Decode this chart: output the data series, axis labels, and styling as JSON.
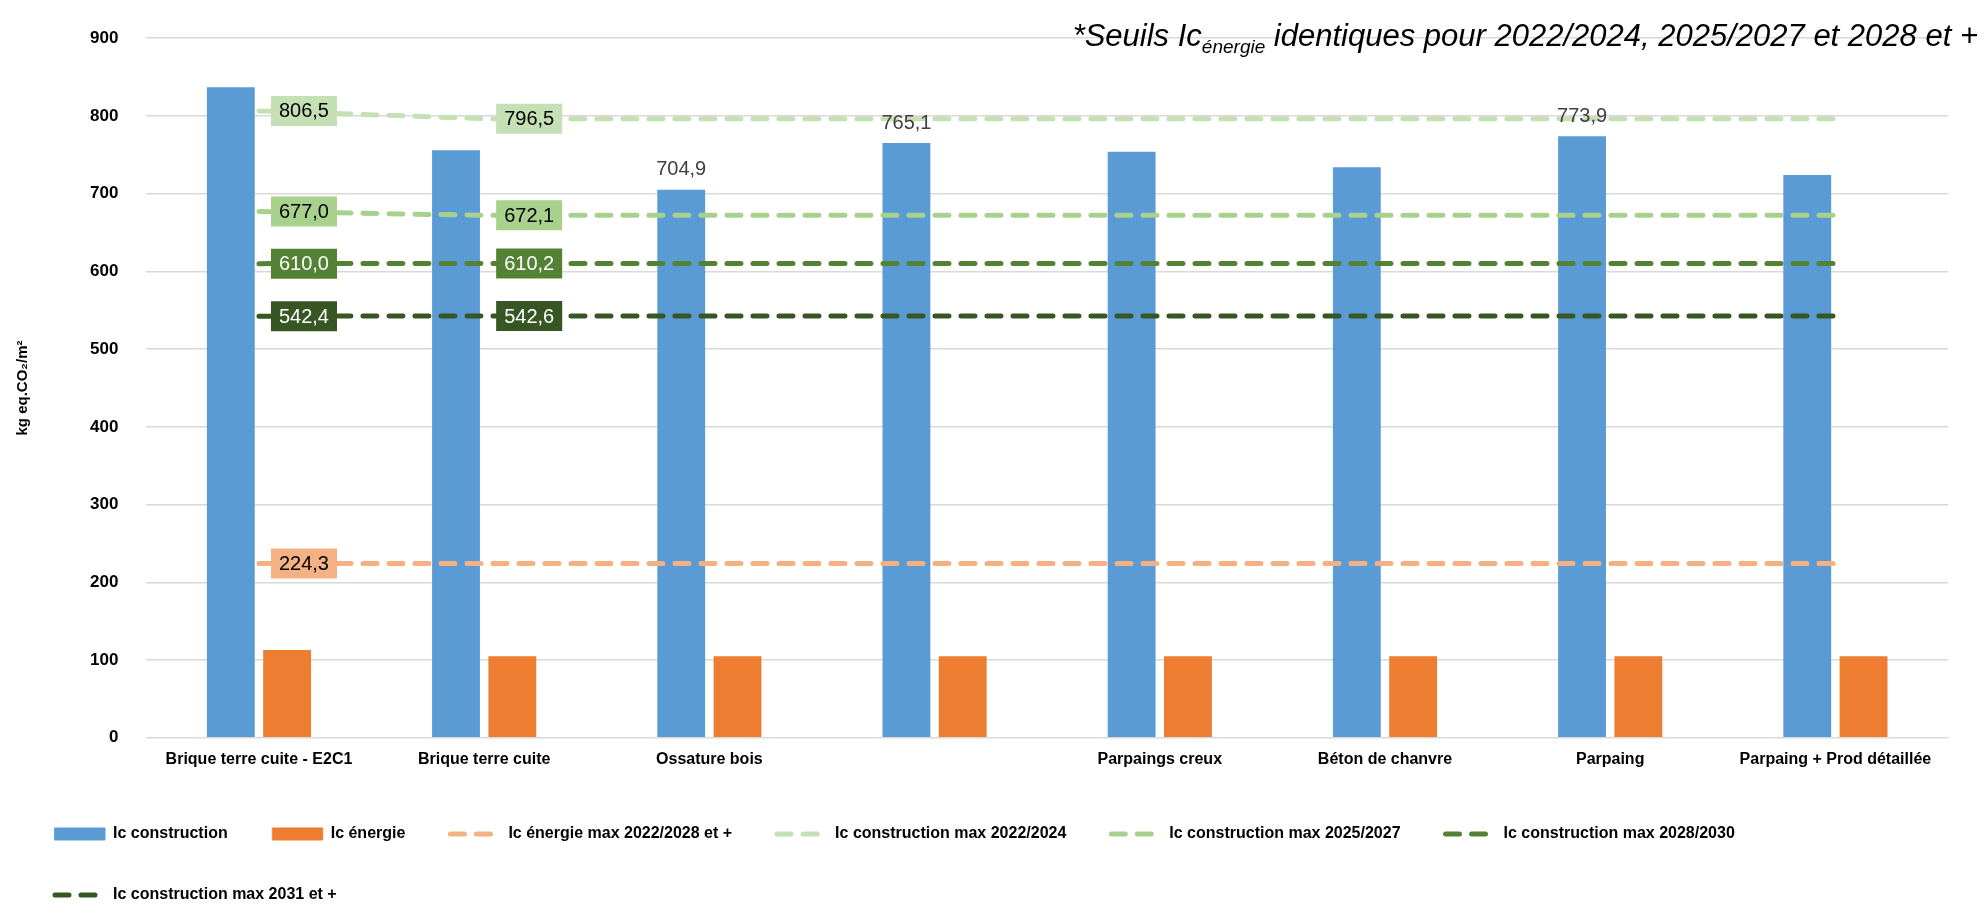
{
  "chart_data": {
    "type": "bar",
    "ylabel": "kg eq.CO₂/m²",
    "categories": [
      "Brique terre cuite - E2C1",
      "Brique terre cuite",
      "Ossature bois",
      null,
      "Parpaings creux",
      "Béton de chanvre",
      "Parpaing",
      "Parpaing + Prod détaillée"
    ],
    "series": [
      {
        "name": "Ic construction",
        "color": "#5b9bd5",
        "values": [
          837,
          756,
          704.9,
          765.1,
          754,
          734,
          773.9,
          724
        ],
        "value_labels": [
          null,
          null,
          "704,9",
          "765,1",
          null,
          null,
          "773,9",
          null
        ]
      },
      {
        "name": "Ic énergie",
        "color": "#ed7d31",
        "values": [
          113,
          105,
          105,
          105,
          105,
          105,
          105,
          105
        ]
      },
      {
        "name": "Ic énergie max 2022/2028 et +",
        "type": "line",
        "line_style": "dashed",
        "color": "#f4b183",
        "values": [
          224.3,
          224.3,
          224.3,
          224.3,
          224.3,
          224.3,
          224.3,
          224.3
        ],
        "value_labels": [
          "224,3",
          null,
          null,
          null,
          null,
          null,
          null,
          null
        ]
      },
      {
        "name": "Ic construction max 2022/2024",
        "type": "line",
        "line_style": "dashed",
        "color": "#c5e0b4",
        "values": [
          806.5,
          796.5,
          796.5,
          796.5,
          796.5,
          796.5,
          796.5,
          796.5
        ],
        "value_labels": [
          "806,5",
          "796,5",
          null,
          null,
          null,
          null,
          null,
          null
        ]
      },
      {
        "name": "Ic construction max 2025/2027",
        "type": "line",
        "line_style": "dashed",
        "color": "#a9d18e",
        "values": [
          677.0,
          672.1,
          672.1,
          672.1,
          672.1,
          672.1,
          672.1,
          672.1
        ],
        "value_labels": [
          "677,0",
          "672,1",
          null,
          null,
          null,
          null,
          null,
          null
        ]
      },
      {
        "name": "Ic construction max 2028/2030",
        "type": "line",
        "line_style": "dashed",
        "color": "#548235",
        "values": [
          610.0,
          610.2,
          610.2,
          610.2,
          610.2,
          610.2,
          610.2,
          610.2
        ],
        "value_labels": [
          "610,0",
          "610,2",
          null,
          null,
          null,
          null,
          null,
          null
        ]
      },
      {
        "name": "Ic construction max 2031 et +",
        "type": "line",
        "line_style": "dashed",
        "color": "#375623",
        "values": [
          542.4,
          542.6,
          542.6,
          542.6,
          542.6,
          542.6,
          542.6,
          542.6
        ],
        "value_labels": [
          "542,4",
          "542,6",
          null,
          null,
          null,
          null,
          null,
          null
        ]
      }
    ],
    "ylim": [
      0,
      900
    ],
    "yticks": [
      0,
      100,
      200,
      300,
      400,
      500,
      600,
      700,
      800,
      900
    ],
    "grid": "y",
    "legend": "bottom",
    "marker": "none",
    "annotations": [
      "*Seuils Ic$_{énergie}$ identiques pour 2022/2024, 2025/2027 et 2028 et +"
    ]
  }
}
